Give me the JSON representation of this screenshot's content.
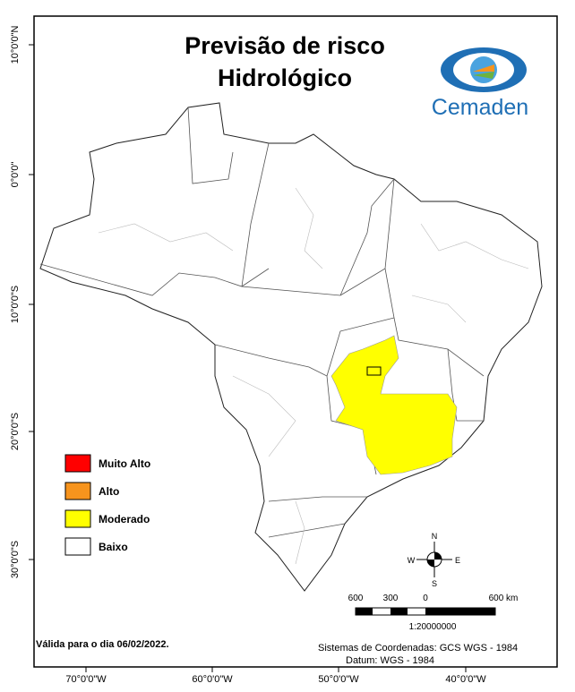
{
  "header": {
    "title_lines": [
      "Previsão de risco",
      "Hidrológico"
    ],
    "logo": "Cemaden"
  },
  "latitude_labels": [
    "10°0'0\"N",
    "0°0'0\"",
    "10°0'0\"S",
    "20°0'0\"S",
    "30°0'0\"S"
  ],
  "longitude_labels": [
    "70°0'0\"W",
    "60°0'0\"W",
    "50°0'0\"W",
    "40°0'0\"W"
  ],
  "legend": {
    "items": [
      {
        "label": "Muito Alto",
        "color": "#ff0000"
      },
      {
        "label": "Alto",
        "color": "#f7941d"
      },
      {
        "label": "Moderado",
        "color": "#ffff00"
      },
      {
        "label": "Baixo",
        "color": "#ffffff"
      }
    ]
  },
  "compass": {
    "north": "N",
    "south": "S",
    "east": "E",
    "west": "W"
  },
  "scale_bar": {
    "labels": [
      "600",
      "300",
      "0",
      "600 km"
    ],
    "ratio": "1:20000000"
  },
  "footer": {
    "valid_date": "Válida para o dia 06/02/2022.",
    "coordinate_system": "Sistemas de Coordenadas: GCS WGS - 1984",
    "datum": "Datum: WGS - 1984"
  }
}
